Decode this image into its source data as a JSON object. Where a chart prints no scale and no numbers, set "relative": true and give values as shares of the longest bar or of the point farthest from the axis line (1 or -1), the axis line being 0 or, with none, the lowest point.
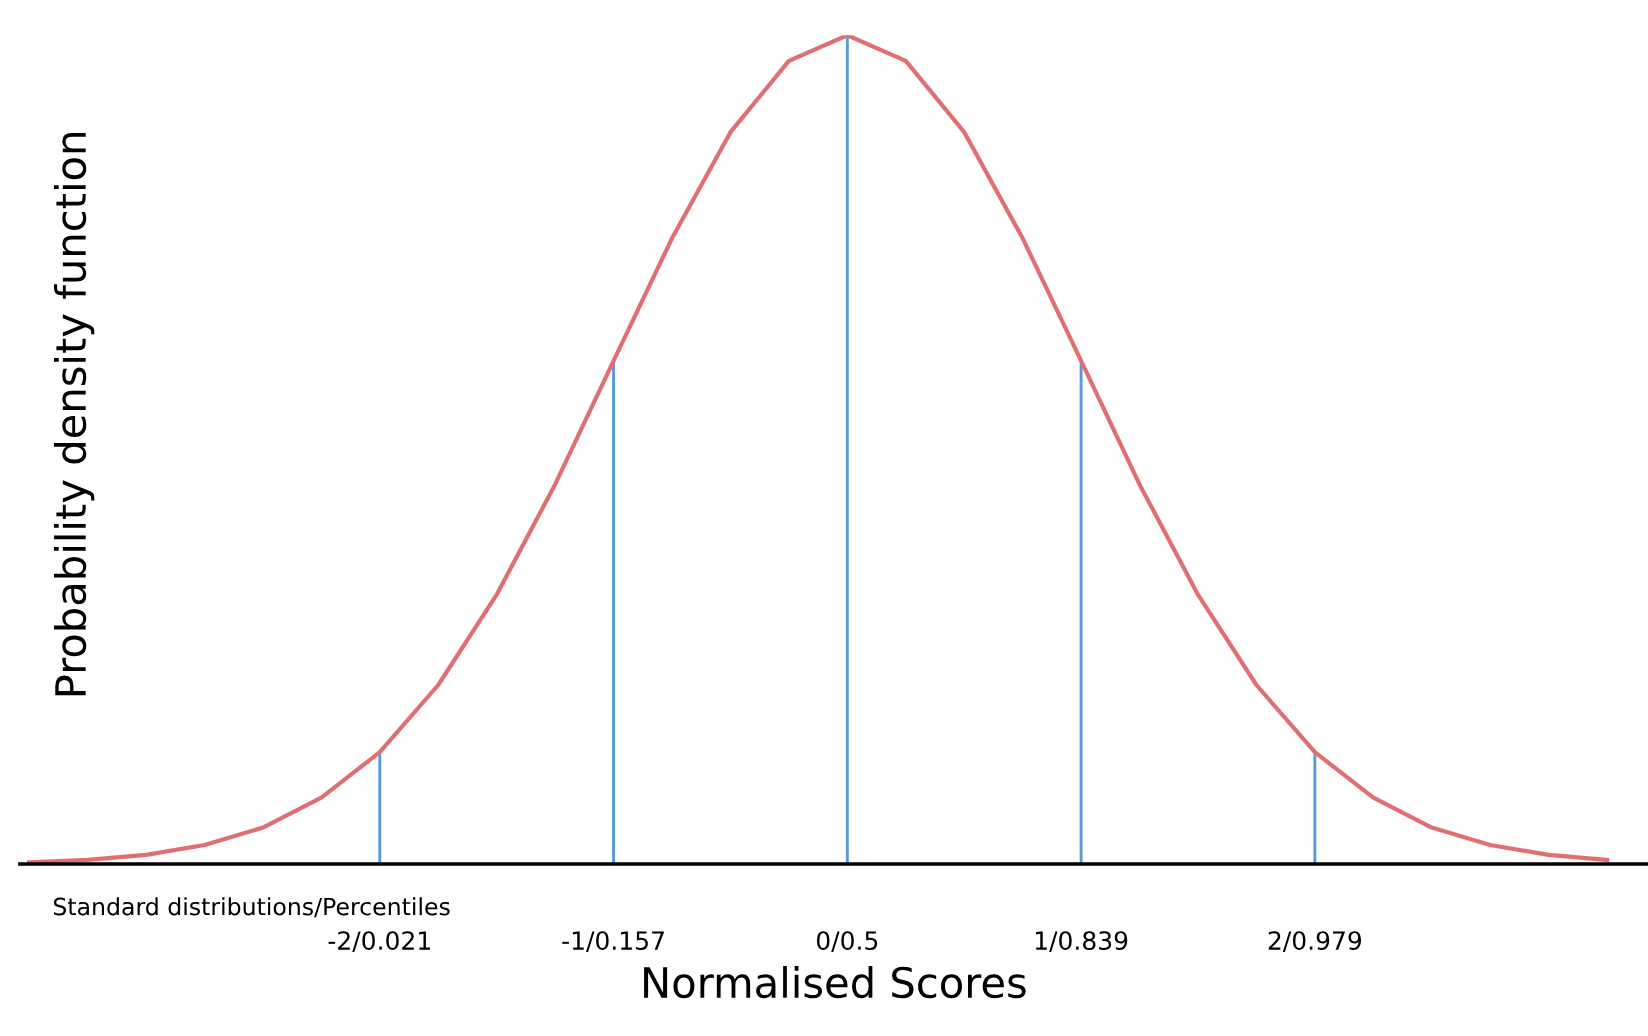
{
  "chart_data": {
    "type": "line",
    "relative": true,
    "xlabel": "Normalised Scores",
    "ylabel": "Probability density function",
    "annotations": [
      "Standard distributions/Percentiles"
    ],
    "categories": [
      null,
      null,
      null,
      null,
      null,
      null,
      "-2/0.021",
      null,
      null,
      null,
      "-1/0.157",
      null,
      null,
      null,
      "0/0.5",
      null,
      null,
      null,
      "1/0.839",
      null,
      null,
      null,
      "2/0.979",
      null,
      null,
      null,
      null,
      null
    ],
    "grid": false,
    "legend": false,
    "marker": "none",
    "line_style": "solid",
    "series": [
      {
        "color": "#e07070",
        "values": [
          0.002,
          0.005,
          0.011,
          0.023,
          0.044,
          0.08,
          0.135,
          0.216,
          0.325,
          0.458,
          0.607,
          0.755,
          0.883,
          0.969,
          1,
          0.969,
          0.883,
          0.755,
          0.607,
          0.458,
          0.325,
          0.216,
          0.135,
          0.08,
          0.044,
          0.023,
          0.011,
          0.005
        ]
      },
      {
        "type": "bar",
        "color": "#5b9bd5",
        "values": [
          null,
          null,
          null,
          null,
          null,
          null,
          0.135,
          null,
          null,
          null,
          0.607,
          null,
          null,
          null,
          1,
          null,
          null,
          null,
          0.607,
          null,
          null,
          null,
          0.135,
          null,
          null,
          null,
          null,
          null
        ]
      }
    ]
  }
}
